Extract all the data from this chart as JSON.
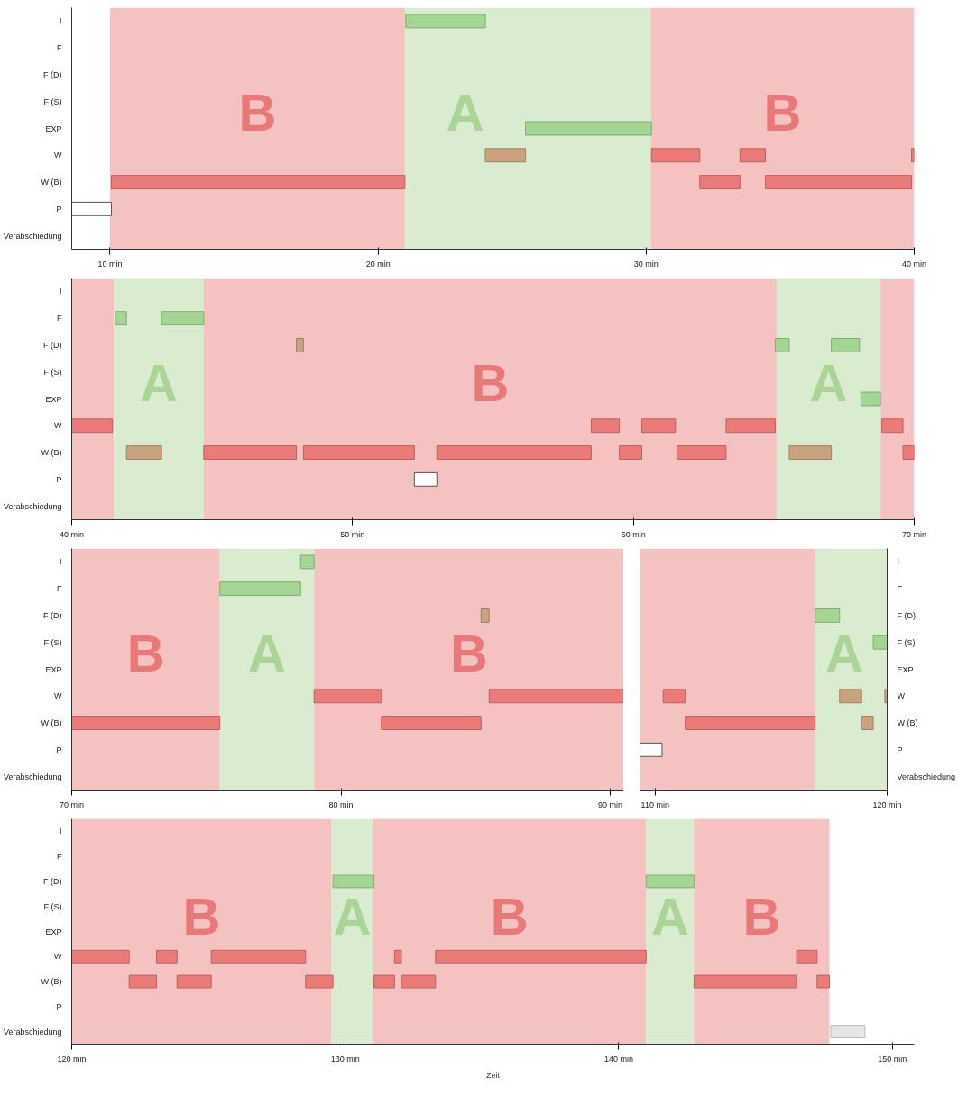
{
  "chart_data": [
    {
      "type": "bar",
      "orientation": "horizontal",
      "categories": [
        "I",
        "F",
        "F (D)",
        "F (S)",
        "EXP",
        "W",
        "W (B)",
        "P",
        "Verabschiedung"
      ],
      "xlim": [
        8.57,
        40
      ],
      "xticks": [
        {
          "value": 10,
          "label": "10 min"
        },
        {
          "value": 20,
          "label": "20 min"
        },
        {
          "value": 30,
          "label": "30 min"
        },
        {
          "value": 40,
          "label": "40 min"
        }
      ],
      "series": [
        {
          "base": [
            21.03,
            null,
            null,
            null,
            25.5,
            24.0,
            10.05,
            8.57,
            null
          ],
          "values": [
            2.97,
            null,
            null,
            null,
            4.7,
            1.5,
            10.95,
            1.48,
            null
          ],
          "colors": [
            "#a3d693",
            null,
            null,
            null,
            "#a3d693",
            "#c9a27f",
            "#ec7a78",
            "#ffffff",
            null
          ]
        },
        {
          "base": [
            null,
            null,
            null,
            null,
            null,
            30.2,
            32.0,
            null,
            null
          ],
          "values": [
            null,
            null,
            null,
            null,
            null,
            1.8,
            1.5,
            null,
            null
          ],
          "color": "#ec7a78"
        },
        {
          "base": [
            null,
            null,
            null,
            null,
            null,
            33.5,
            34.45,
            null,
            null
          ],
          "values": [
            null,
            null,
            null,
            null,
            null,
            0.95,
            5.45,
            null,
            null
          ],
          "color": "#ec7a78"
        },
        {
          "base": [
            null,
            null,
            null,
            null,
            null,
            39.9,
            null,
            null,
            null
          ],
          "values": [
            null,
            null,
            null,
            null,
            null,
            0.1,
            null,
            null,
            null
          ],
          "color": "#ec7a78"
        }
      ],
      "bands": [
        {
          "axis": "x",
          "from": 10,
          "to": 21.0,
          "label": "B",
          "color": "#f5c2c2"
        },
        {
          "axis": "x",
          "from": 21.0,
          "to": 30.17,
          "label": "A",
          "color": "#d9ecd0"
        },
        {
          "axis": "x",
          "from": 30.17,
          "to": 40,
          "label": "B",
          "color": "#f5c2c2"
        }
      ]
    },
    {
      "type": "bar",
      "orientation": "horizontal",
      "categories": [
        "I",
        "F",
        "F (D)",
        "F (S)",
        "EXP",
        "W",
        "W (B)",
        "P",
        "Verabschiedung"
      ],
      "xlim": [
        40,
        70
      ],
      "xticks": [
        {
          "value": 40,
          "label": "40 min"
        },
        {
          "value": 50,
          "label": "50 min"
        },
        {
          "value": 60,
          "label": "60 min"
        },
        {
          "value": 70,
          "label": "70 min"
        }
      ],
      "series": [
        {
          "base": [
            null,
            41.55,
            48.0,
            null,
            68.1,
            40.0,
            41.95,
            52.2,
            null
          ],
          "values": [
            null,
            0.4,
            0.25,
            null,
            0.7,
            1.45,
            1.25,
            0.8,
            null
          ],
          "colors": [
            null,
            "#a3d693",
            "#c9a27f",
            null,
            "#a3d693",
            "#ec7a78",
            "#c9a27f",
            "#ffffff",
            null
          ]
        },
        {
          "base": [
            null,
            43.2,
            65.05,
            null,
            null,
            58.5,
            44.7,
            null,
            null
          ],
          "values": [
            null,
            1.5,
            0.5,
            null,
            null,
            1.0,
            3.3,
            null,
            null
          ],
          "colors": [
            null,
            "#a3d693",
            "#a3d693",
            null,
            null,
            "#ec7a78",
            "#ec7a78",
            null,
            null
          ]
        },
        {
          "base": [
            null,
            null,
            67.05,
            null,
            null,
            60.3,
            48.25,
            null,
            null
          ],
          "values": [
            null,
            null,
            1.0,
            null,
            null,
            1.2,
            3.95,
            null,
            null
          ],
          "colors": [
            null,
            null,
            "#a3d693",
            null,
            null,
            "#ec7a78",
            "#ec7a78",
            null,
            null
          ]
        },
        {
          "base": [
            null,
            null,
            null,
            null,
            null,
            63.3,
            53.0,
            null,
            null
          ],
          "values": [
            null,
            null,
            null,
            null,
            null,
            1.75,
            5.5,
            null,
            null
          ],
          "color": "#ec7a78"
        },
        {
          "base": [
            null,
            null,
            null,
            null,
            null,
            68.85,
            59.5,
            null,
            null
          ],
          "values": [
            null,
            null,
            null,
            null,
            null,
            0.75,
            0.8,
            null,
            null
          ],
          "color": "#ec7a78"
        },
        {
          "base": [
            null,
            null,
            null,
            null,
            null,
            null,
            61.55,
            null,
            null
          ],
          "values": [
            null,
            null,
            null,
            null,
            null,
            null,
            1.75,
            null,
            null
          ],
          "color": "#ec7a78"
        },
        {
          "base": [
            null,
            null,
            null,
            null,
            null,
            null,
            65.55,
            null,
            null
          ],
          "values": [
            null,
            null,
            null,
            null,
            null,
            null,
            1.5,
            null,
            null
          ],
          "color": "#c9a27f"
        },
        {
          "base": [
            null,
            null,
            null,
            null,
            null,
            null,
            69.6,
            null,
            null
          ],
          "values": [
            null,
            null,
            null,
            null,
            null,
            null,
            0.4,
            null,
            null
          ],
          "color": "#ec7a78"
        }
      ],
      "bands": [
        {
          "axis": "x",
          "from": 40,
          "to": 41.5,
          "color": "#f5c2c2"
        },
        {
          "axis": "x",
          "from": 41.5,
          "to": 44.7,
          "label": "A",
          "color": "#d9ecd0"
        },
        {
          "axis": "x",
          "from": 44.7,
          "to": 65.1,
          "label": "B",
          "color": "#f5c2c2"
        },
        {
          "axis": "x",
          "from": 65.1,
          "to": 68.8,
          "label": "A",
          "color": "#d9ecd0"
        },
        {
          "axis": "x",
          "from": 68.8,
          "to": 70,
          "color": "#f5c2c2"
        }
      ]
    },
    {
      "type": "bar",
      "orientation": "horizontal",
      "categories": [
        "I",
        "F",
        "F (D)",
        "F (S)",
        "EXP",
        "W",
        "W (B)",
        "P",
        "Verabschiedung"
      ],
      "xlim": [
        70,
        90.5
      ],
      "xticks": [
        {
          "value": 70,
          "label": "70 min"
        },
        {
          "value": 80,
          "label": "80 min"
        },
        {
          "value": 90,
          "label": "90 min"
        }
      ],
      "series": [
        {
          "base": [
            78.5,
            75.5,
            85.2,
            null,
            null,
            79.0,
            70.0,
            null,
            null
          ],
          "values": [
            0.5,
            3.0,
            0.3,
            null,
            null,
            2.5,
            5.5,
            null,
            null
          ],
          "colors": [
            "#a3d693",
            "#a3d693",
            "#c9a27f",
            null,
            null,
            "#ec7a78",
            "#ec7a78",
            null,
            null
          ]
        },
        {
          "base": [
            null,
            null,
            null,
            null,
            null,
            85.5,
            81.5,
            null,
            null
          ],
          "values": [
            null,
            null,
            null,
            null,
            null,
            5.0,
            3.7,
            null,
            null
          ],
          "color": "#ec7a78"
        }
      ],
      "bands": [
        {
          "axis": "x",
          "from": 70,
          "to": 75.5,
          "label": "B",
          "color": "#f5c2c2"
        },
        {
          "axis": "x",
          "from": 75.5,
          "to": 79.0,
          "label": "A",
          "color": "#d9ecd0"
        },
        {
          "axis": "x",
          "from": 79.0,
          "to": 90.5,
          "label": "B",
          "color": "#f5c2c2"
        }
      ]
    },
    {
      "type": "bar",
      "orientation": "horizontal",
      "categories": [
        "I",
        "F",
        "F (D)",
        "F (S)",
        "EXP",
        "W",
        "W (B)",
        "P",
        "Verabschiedung"
      ],
      "xlim": [
        109.35,
        120
      ],
      "xticks": [
        {
          "value": 110,
          "label": "110 min"
        },
        {
          "value": 120,
          "label": "120 min"
        }
      ],
      "series": [
        {
          "base": [
            null,
            null,
            116.9,
            119.4,
            null,
            110.35,
            111.3,
            109.35,
            null
          ],
          "values": [
            null,
            null,
            1.05,
            0.6,
            null,
            0.95,
            5.6,
            0.95,
            null
          ],
          "colors": [
            null,
            null,
            "#a3d693",
            "#a3d693",
            null,
            "#ec7a78",
            "#ec7a78",
            "#ffffff",
            null
          ]
        },
        {
          "base": [
            null,
            null,
            null,
            null,
            null,
            117.95,
            118.9,
            null,
            null
          ],
          "values": [
            null,
            null,
            null,
            null,
            null,
            0.95,
            0.5,
            null,
            null
          ],
          "color": "#c9a27f"
        },
        {
          "base": [
            null,
            null,
            null,
            null,
            null,
            119.9,
            null,
            null,
            null
          ],
          "values": [
            null,
            null,
            null,
            null,
            null,
            0.1,
            null,
            null,
            null
          ],
          "color": "#c9a27f"
        }
      ],
      "bands": [
        {
          "axis": "x",
          "from": 109.35,
          "to": 116.9,
          "color": "#f5c2c2"
        },
        {
          "axis": "x",
          "from": 116.9,
          "to": 120,
          "label": "A",
          "color": "#d9ecd0"
        }
      ]
    },
    {
      "type": "bar",
      "orientation": "horizontal",
      "xlabel": "Zeit",
      "categories": [
        "I",
        "F",
        "F (D)",
        "F (S)",
        "EXP",
        "W",
        "W (B)",
        "P",
        "Verabschiedung"
      ],
      "xlim": [
        120,
        150.8
      ],
      "xticks": [
        {
          "value": 120,
          "label": "120 min"
        },
        {
          "value": 130,
          "label": "130 min"
        },
        {
          "value": 140,
          "label": "140 min"
        },
        {
          "value": 150,
          "label": "150 min"
        }
      ],
      "series": [
        {
          "base": [
            null,
            null,
            129.55,
            null,
            null,
            120.0,
            122.1,
            null,
            147.75
          ],
          "values": [
            null,
            null,
            1.5,
            null,
            null,
            2.1,
            1.0,
            null,
            1.25
          ],
          "colors": [
            null,
            null,
            "#a3d693",
            null,
            null,
            "#ec7a78",
            "#ec7a78",
            null,
            "#e6e6e6"
          ]
        },
        {
          "base": [
            null,
            null,
            141.0,
            null,
            null,
            123.1,
            123.85,
            null,
            null
          ],
          "values": [
            null,
            null,
            1.75,
            null,
            null,
            0.75,
            1.25,
            null,
            null
          ],
          "colors": [
            null,
            null,
            "#a3d693",
            null,
            null,
            "#ec7a78",
            "#ec7a78",
            null,
            null
          ]
        },
        {
          "base": [
            null,
            null,
            null,
            null,
            null,
            125.1,
            128.55,
            null,
            null
          ],
          "values": [
            null,
            null,
            null,
            null,
            null,
            3.45,
            1.0,
            null,
            null
          ],
          "color": "#ec7a78"
        },
        {
          "base": [
            null,
            null,
            null,
            null,
            null,
            131.8,
            131.05,
            null,
            null
          ],
          "values": [
            null,
            null,
            null,
            null,
            null,
            0.25,
            0.75,
            null,
            null
          ],
          "color": "#ec7a78"
        },
        {
          "base": [
            null,
            null,
            null,
            null,
            null,
            133.3,
            132.05,
            null,
            null
          ],
          "values": [
            null,
            null,
            null,
            null,
            null,
            7.7,
            1.25,
            null,
            null
          ],
          "color": "#ec7a78"
        },
        {
          "base": [
            null,
            null,
            null,
            null,
            null,
            146.5,
            142.75,
            null,
            null
          ],
          "values": [
            null,
            null,
            null,
            null,
            null,
            0.75,
            3.75,
            null,
            null
          ],
          "color": "#ec7a78"
        },
        {
          "base": [
            null,
            null,
            null,
            null,
            null,
            null,
            147.25,
            null,
            null
          ],
          "values": [
            null,
            null,
            null,
            null,
            null,
            null,
            0.45,
            null,
            null
          ],
          "color": "#ec7a78"
        }
      ],
      "bands": [
        {
          "axis": "x",
          "from": 120,
          "to": 129.5,
          "label": "B",
          "color": "#f5c2c2"
        },
        {
          "axis": "x",
          "from": 129.5,
          "to": 131.0,
          "label": "A",
          "color": "#d9ecd0"
        },
        {
          "axis": "x",
          "from": 131.0,
          "to": 141.0,
          "label": "B",
          "color": "#f5c2c2"
        },
        {
          "axis": "x",
          "from": 141.0,
          "to": 142.75,
          "label": "A",
          "color": "#d9ecd0"
        },
        {
          "axis": "x",
          "from": 142.75,
          "to": 147.7,
          "label": "B",
          "color": "#f5c2c2"
        }
      ]
    }
  ]
}
